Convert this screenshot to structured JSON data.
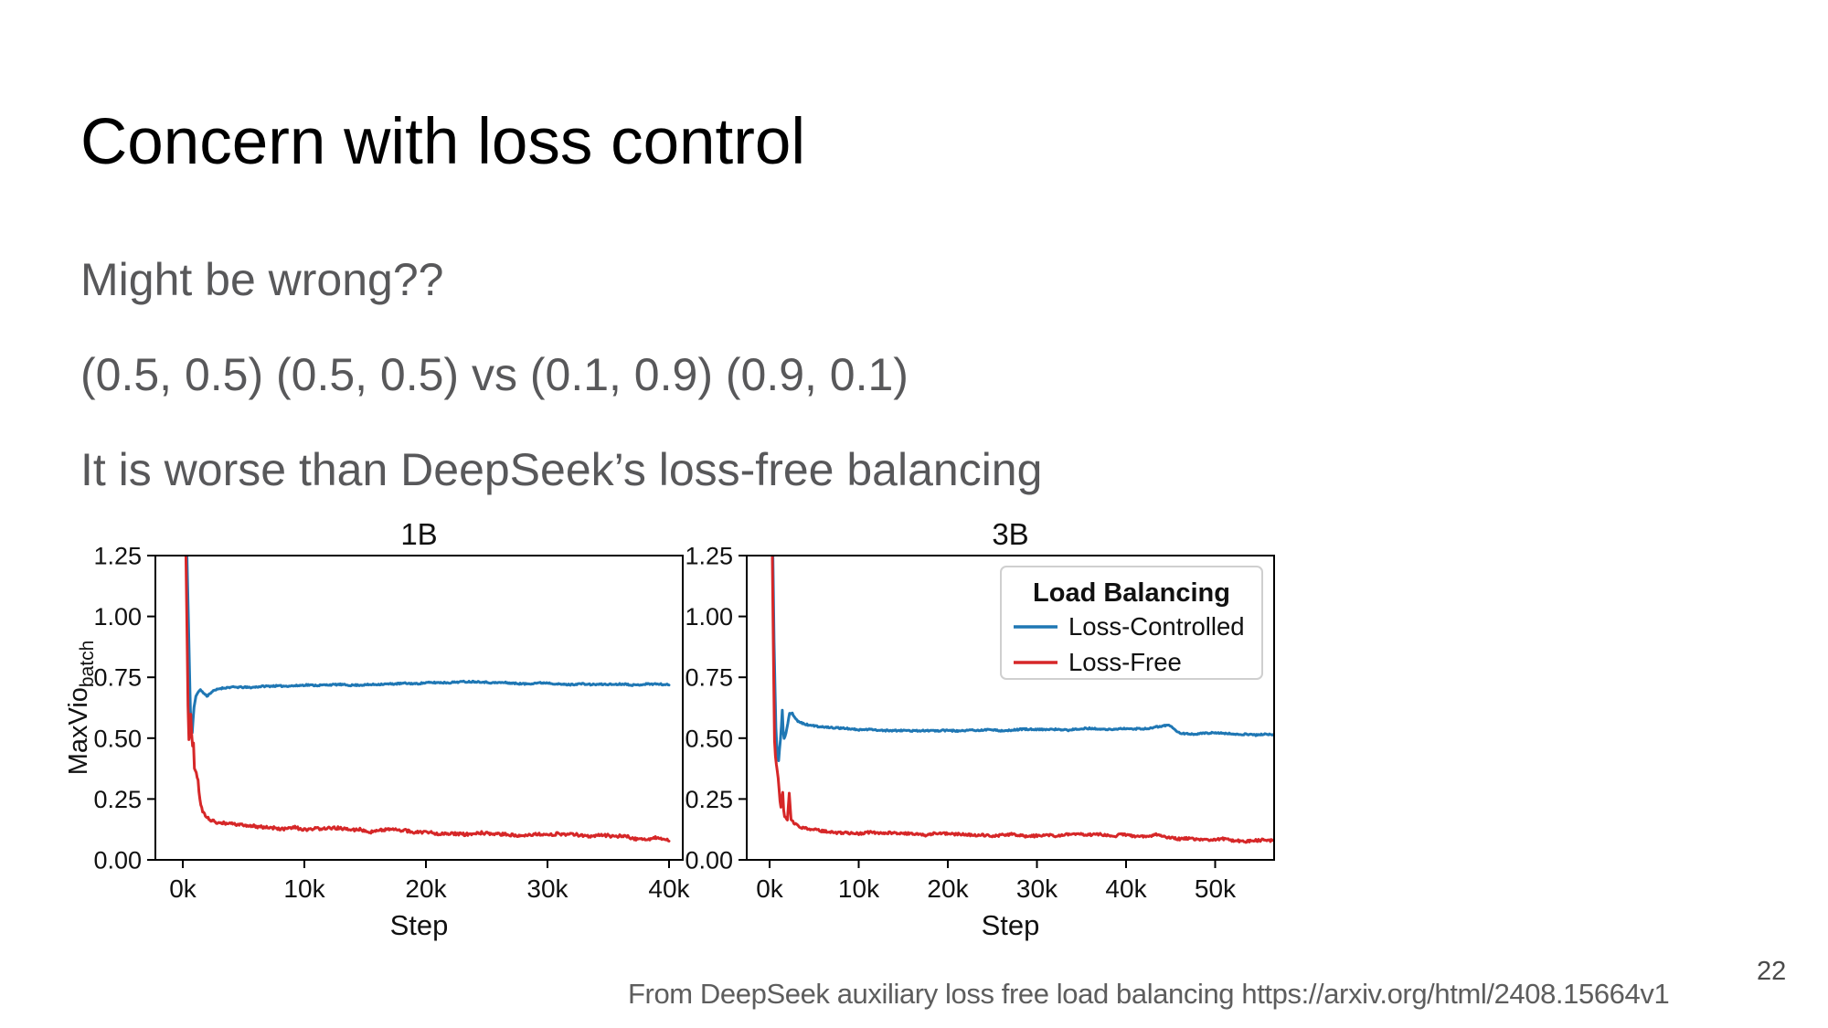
{
  "slide": {
    "title": "Concern with loss control",
    "body_lines": [
      "Might be wrong??",
      "(0.5, 0.5) (0.5, 0.5) vs (0.1, 0.9) (0.9, 0.1)",
      "It is worse than DeepSeek’s loss-free balancing"
    ],
    "footer": "From DeepSeek auxiliary loss free load balancing https://arxiv.org/html/2408.15664v1",
    "page_number": "22",
    "colors": {
      "title": "#000000",
      "body": "#58585a",
      "footer": "#5d5d5d",
      "page": "#4a4a4a"
    }
  },
  "chart_data": [
    {
      "type": "line",
      "title": "1B",
      "xlabel": "Step",
      "ylabel": {
        "text": "MaxVio",
        "sub": "batch"
      },
      "grid": false,
      "legend": null,
      "xlim": [
        -2256,
        41128
      ],
      "ylim": [
        0,
        1.25
      ],
      "xticks": [
        {
          "v": 0,
          "label": "0k"
        },
        {
          "v": 10000,
          "label": "10k"
        },
        {
          "v": 20000,
          "label": "20k"
        },
        {
          "v": 30000,
          "label": "30k"
        },
        {
          "v": 40000,
          "label": "40k"
        }
      ],
      "yticks": [
        {
          "v": 0.0,
          "label": "0.00"
        },
        {
          "v": 0.25,
          "label": "0.25"
        },
        {
          "v": 0.5,
          "label": "0.50"
        },
        {
          "v": 0.75,
          "label": "0.75"
        },
        {
          "v": 1.0,
          "label": "1.00"
        },
        {
          "v": 1.25,
          "label": "1.25"
        }
      ],
      "series": [
        {
          "name": "Loss-Controlled",
          "color": "#1f77b4",
          "linewidth": 3,
          "noise": 0.006,
          "seed": 11,
          "points": [
            [
              250,
              1.45
            ],
            [
              480,
              0.95
            ],
            [
              620,
              0.62
            ],
            [
              750,
              0.5
            ],
            [
              900,
              0.62
            ],
            [
              1100,
              0.675
            ],
            [
              1400,
              0.7
            ],
            [
              1700,
              0.685
            ],
            [
              2000,
              0.672
            ],
            [
              2400,
              0.69
            ],
            [
              3000,
              0.703
            ],
            [
              4000,
              0.707
            ],
            [
              6000,
              0.712
            ],
            [
              9000,
              0.715
            ],
            [
              12000,
              0.718
            ],
            [
              16000,
              0.722
            ],
            [
              20000,
              0.727
            ],
            [
              24000,
              0.73
            ],
            [
              28000,
              0.726
            ],
            [
              32000,
              0.722
            ],
            [
              36000,
              0.72
            ],
            [
              40000,
              0.72
            ]
          ]
        },
        {
          "name": "Loss-Free",
          "color": "#d62728",
          "linewidth": 3,
          "noise": 0.012,
          "seed": 29,
          "points": [
            [
              200,
              1.45
            ],
            [
              330,
              1.0
            ],
            [
              430,
              0.62
            ],
            [
              520,
              0.47
            ],
            [
              600,
              0.55
            ],
            [
              680,
              0.63
            ],
            [
              760,
              0.44
            ],
            [
              850,
              0.52
            ],
            [
              950,
              0.38
            ],
            [
              1100,
              0.365
            ],
            [
              1250,
              0.33
            ],
            [
              1400,
              0.25
            ],
            [
              1600,
              0.205
            ],
            [
              1900,
              0.18
            ],
            [
              2300,
              0.165
            ],
            [
              2800,
              0.158
            ],
            [
              3500,
              0.152
            ],
            [
              4500,
              0.147
            ],
            [
              6000,
              0.14
            ],
            [
              8000,
              0.133
            ],
            [
              10000,
              0.129
            ],
            [
              13000,
              0.124
            ],
            [
              16000,
              0.12
            ],
            [
              19000,
              0.116
            ],
            [
              22000,
              0.112
            ],
            [
              25000,
              0.109
            ],
            [
              28000,
              0.105
            ],
            [
              31000,
              0.102
            ],
            [
              34000,
              0.099
            ],
            [
              36500,
              0.094
            ],
            [
              38500,
              0.089
            ],
            [
              40000,
              0.086
            ]
          ]
        }
      ]
    },
    {
      "type": "line",
      "title": "3B",
      "xlabel": "Step",
      "ylabel": null,
      "grid": false,
      "legend": {
        "title": "Load Balancing",
        "position": "upper right"
      },
      "xlim": [
        -2564,
        56615
      ],
      "ylim": [
        0,
        1.25
      ],
      "xticks": [
        {
          "v": 0,
          "label": "0k"
        },
        {
          "v": 10000,
          "label": "10k"
        },
        {
          "v": 20000,
          "label": "20k"
        },
        {
          "v": 30000,
          "label": "30k"
        },
        {
          "v": 40000,
          "label": "40k"
        },
        {
          "v": 50000,
          "label": "50k"
        }
      ],
      "yticks": [
        {
          "v": 0.0,
          "label": "0.00"
        },
        {
          "v": 0.25,
          "label": "0.25"
        },
        {
          "v": 0.5,
          "label": "0.50"
        },
        {
          "v": 0.75,
          "label": "0.75"
        },
        {
          "v": 1.0,
          "label": "1.00"
        },
        {
          "v": 1.25,
          "label": "1.25"
        }
      ],
      "series": [
        {
          "name": "Loss-Controlled",
          "color": "#1f77b4",
          "linewidth": 3,
          "noise": 0.006,
          "seed": 47,
          "points": [
            [
              300,
              1.45
            ],
            [
              500,
              0.9
            ],
            [
              700,
              0.55
            ],
            [
              850,
              0.44
            ],
            [
              1000,
              0.4
            ],
            [
              1150,
              0.47
            ],
            [
              1300,
              0.52
            ],
            [
              1400,
              0.645
            ],
            [
              1500,
              0.54
            ],
            [
              1650,
              0.5
            ],
            [
              1800,
              0.52
            ],
            [
              2000,
              0.55
            ],
            [
              2200,
              0.6
            ],
            [
              2500,
              0.605
            ],
            [
              2800,
              0.585
            ],
            [
              3200,
              0.57
            ],
            [
              3700,
              0.56
            ],
            [
              4500,
              0.553
            ],
            [
              5500,
              0.548
            ],
            [
              7000,
              0.542
            ],
            [
              9000,
              0.538
            ],
            [
              12000,
              0.535
            ],
            [
              16000,
              0.532
            ],
            [
              20000,
              0.53
            ],
            [
              24000,
              0.532
            ],
            [
              28000,
              0.534
            ],
            [
              32000,
              0.535
            ],
            [
              36000,
              0.537
            ],
            [
              40000,
              0.54
            ],
            [
              42500,
              0.543
            ],
            [
              44000,
              0.55
            ],
            [
              44800,
              0.553
            ],
            [
              45500,
              0.535
            ],
            [
              46200,
              0.522
            ],
            [
              47500,
              0.517
            ],
            [
              49000,
              0.52
            ],
            [
              51000,
              0.521
            ],
            [
              53000,
              0.518
            ],
            [
              55000,
              0.514
            ],
            [
              56500,
              0.513
            ]
          ]
        },
        {
          "name": "Loss-Free",
          "color": "#d62728",
          "linewidth": 3,
          "noise": 0.01,
          "seed": 83,
          "points": [
            [
              250,
              1.45
            ],
            [
              400,
              0.95
            ],
            [
              550,
              0.5
            ],
            [
              700,
              0.4
            ],
            [
              850,
              0.37
            ],
            [
              1000,
              0.33
            ],
            [
              1150,
              0.25
            ],
            [
              1300,
              0.21
            ],
            [
              1450,
              0.31
            ],
            [
              1600,
              0.19
            ],
            [
              1800,
              0.175
            ],
            [
              2000,
              0.168
            ],
            [
              2200,
              0.27
            ],
            [
              2400,
              0.165
            ],
            [
              2700,
              0.15
            ],
            [
              3200,
              0.138
            ],
            [
              4000,
              0.128
            ],
            [
              5000,
              0.122
            ],
            [
              6500,
              0.117
            ],
            [
              8500,
              0.113
            ],
            [
              11000,
              0.11
            ],
            [
              14000,
              0.108
            ],
            [
              17000,
              0.107
            ],
            [
              20000,
              0.105
            ],
            [
              23000,
              0.103
            ],
            [
              26000,
              0.102
            ],
            [
              29000,
              0.102
            ],
            [
              32000,
              0.101
            ],
            [
              35000,
              0.101
            ],
            [
              38000,
              0.1
            ],
            [
              41000,
              0.1
            ],
            [
              43500,
              0.099
            ],
            [
              45000,
              0.094
            ],
            [
              46000,
              0.086
            ],
            [
              47500,
              0.083
            ],
            [
              49000,
              0.085
            ],
            [
              51000,
              0.083
            ],
            [
              53000,
              0.08
            ],
            [
              55000,
              0.077
            ],
            [
              56500,
              0.078
            ]
          ]
        }
      ]
    }
  ]
}
